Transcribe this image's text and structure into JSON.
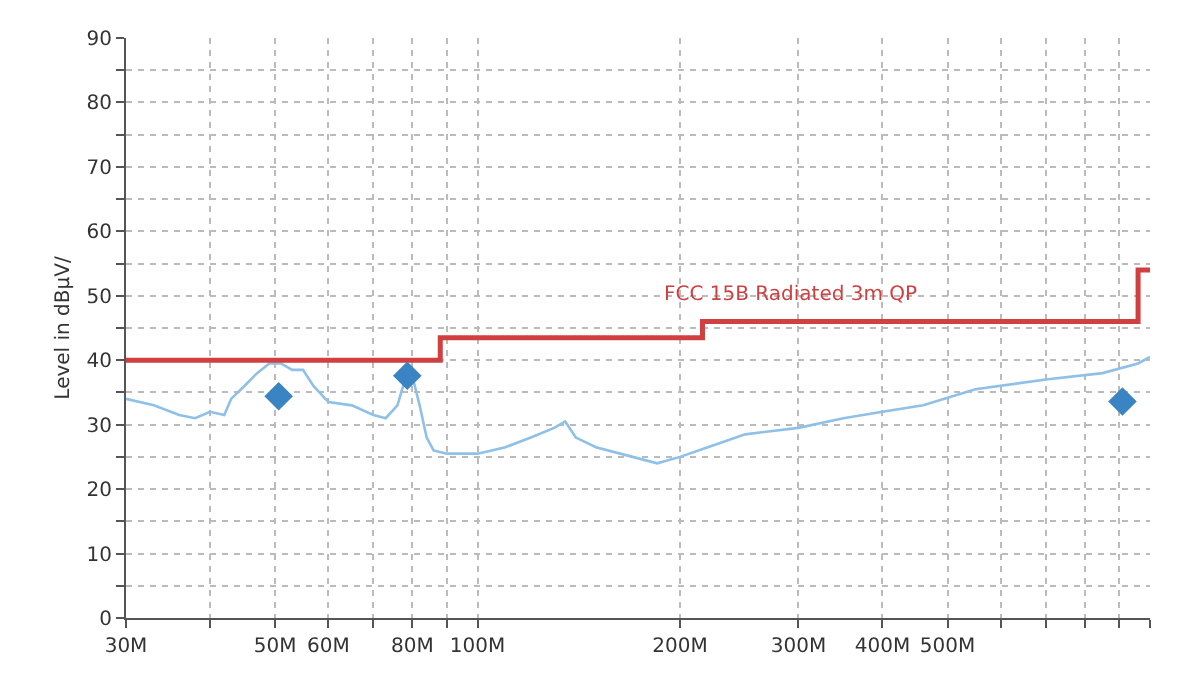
{
  "chart_data": {
    "type": "line",
    "ylabel": "Level in dBµV/",
    "log": "x",
    "grid": true,
    "xlim": [
      30,
      1000
    ],
    "xticks": [
      {
        "value": 30,
        "label": "30M"
      },
      {
        "value": 40,
        "label": null
      },
      {
        "value": 50,
        "label": "50M"
      },
      {
        "value": 60,
        "label": "60M"
      },
      {
        "value": 70,
        "label": null
      },
      {
        "value": 80,
        "label": "80M"
      },
      {
        "value": 90,
        "label": null
      },
      {
        "value": 100,
        "label": "100M"
      },
      {
        "value": 200,
        "label": "200M"
      },
      {
        "value": 300,
        "label": "300M"
      },
      {
        "value": 400,
        "label": "400M"
      },
      {
        "value": 500,
        "label": "500M"
      },
      {
        "value": 600,
        "label": null
      },
      {
        "value": 700,
        "label": null
      },
      {
        "value": 800,
        "label": null
      },
      {
        "value": 900,
        "label": null
      },
      {
        "value": 1000,
        "label": null
      }
    ],
    "ylim": [
      0,
      90
    ],
    "yticks": [
      0,
      {
        "value": 5,
        "label": null
      },
      10,
      {
        "value": 15,
        "label": null
      },
      20,
      {
        "value": 25,
        "label": null
      },
      30,
      {
        "value": 35,
        "label": null
      },
      40,
      {
        "value": 45,
        "label": null
      },
      50,
      {
        "value": 55,
        "label": null
      },
      60,
      {
        "value": 65,
        "label": null
      },
      70,
      {
        "value": 75,
        "label": null
      },
      80,
      {
        "value": 85,
        "label": null
      },
      90
    ],
    "series": [
      {
        "color": "#8ec0e8",
        "x": [
          30,
          33,
          36,
          38,
          40,
          42,
          43,
          45,
          47,
          49,
          51,
          53,
          55,
          57,
          60,
          65,
          70,
          73,
          76,
          78,
          80,
          82,
          84,
          86,
          90,
          100,
          110,
          120,
          130,
          135,
          140,
          150,
          170,
          185,
          200,
          220,
          250,
          300,
          350,
          400,
          460,
          550,
          700,
          850,
          960,
          1000
        ],
        "values": [
          34,
          33,
          31.5,
          31,
          32,
          31.5,
          34,
          36,
          38,
          39.5,
          39.5,
          38.5,
          38.5,
          36,
          33.5,
          33,
          31.5,
          31,
          33,
          37,
          37.5,
          33,
          28,
          26,
          25.5,
          25.5,
          26.5,
          28,
          29.5,
          30.5,
          28,
          26.5,
          25,
          24,
          25,
          26.5,
          28.5,
          29.5,
          31,
          32,
          33,
          35.5,
          37,
          38,
          39.5,
          40.5
        ]
      },
      {
        "type": "step",
        "color": "#d04040",
        "x": [
          30,
          88,
          216,
          960,
          1000
        ],
        "values": [
          40,
          43.5,
          46,
          54,
          54
        ]
      },
      {
        "type": "scatter",
        "marker": "diamond",
        "color": "#3a84c4",
        "x": [
          50.6,
          78.6,
          910
        ],
        "values": [
          34.4,
          37.6,
          33.6
        ]
      }
    ],
    "annotations": [
      {
        "text": "FCC 15B Radiated 3m QP",
        "x": 292,
        "y": 46
      }
    ]
  }
}
